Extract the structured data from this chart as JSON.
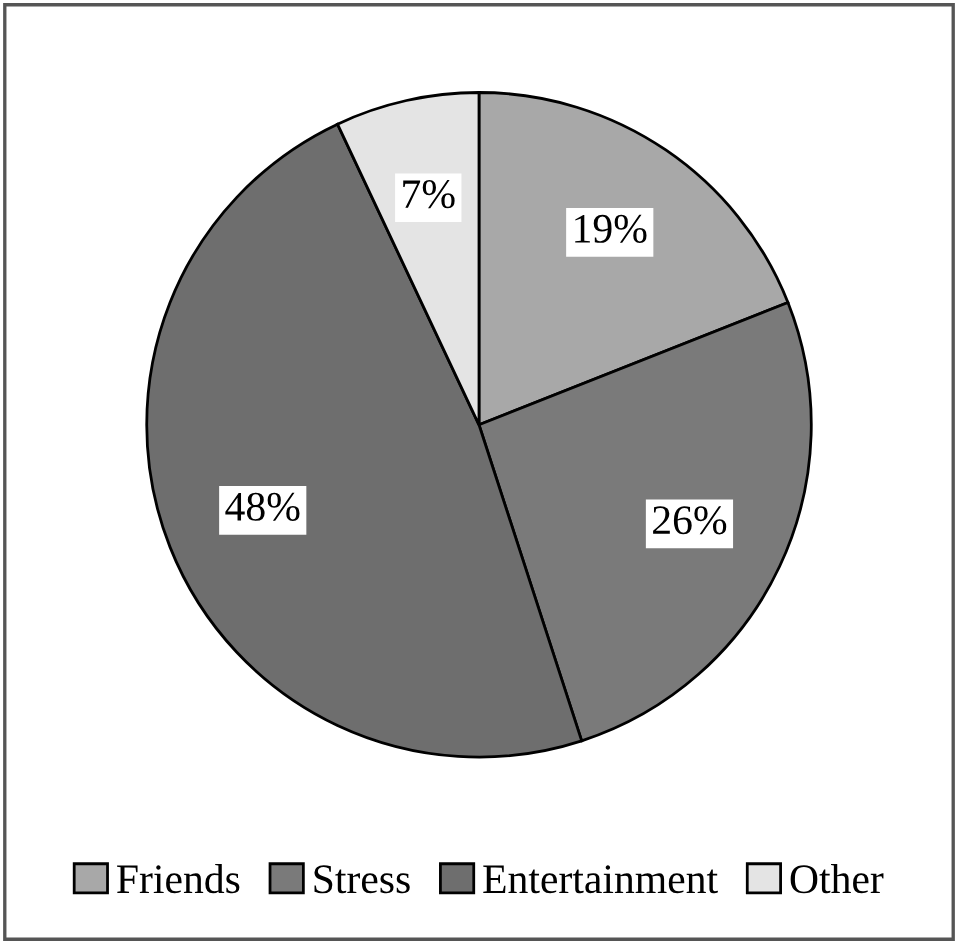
{
  "chart_data": {
    "type": "pie",
    "categories": [
      "Friends",
      "Stress",
      "Entertainment",
      "Other"
    ],
    "values": [
      19,
      26,
      48,
      7
    ],
    "value_labels": [
      "19%",
      "26%",
      "48%",
      "7%"
    ],
    "colors": [
      "#a8a8a8",
      "#7a7a7a",
      "#6e6e6e",
      "#e4e4e4"
    ],
    "legend": "bottom"
  }
}
